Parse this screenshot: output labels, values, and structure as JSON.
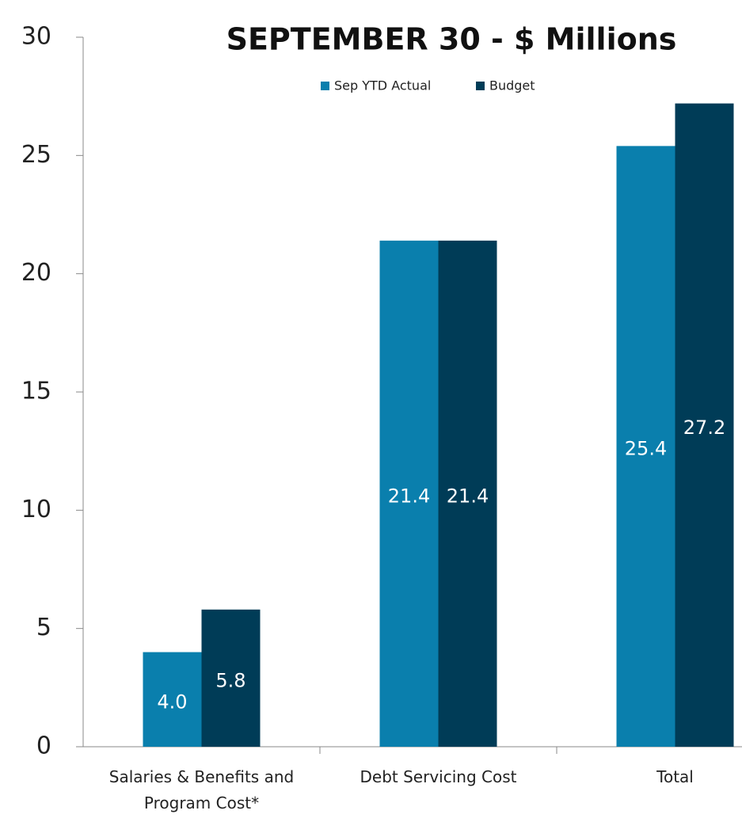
{
  "chart_data": {
    "type": "bar",
    "title": "SEPTEMBER 30 - $ Millions",
    "categories": [
      "Salaries & Benefits and Program Cost*",
      "Debt Servicing Cost",
      "Total"
    ],
    "series": [
      {
        "name": "Sep YTD Actual",
        "color": "#0a7fad",
        "values": [
          4.0,
          21.4,
          25.4
        ],
        "value_labels": [
          "4.0",
          "21.4",
          "25.4"
        ]
      },
      {
        "name": "Budget",
        "color": "#003c57",
        "values": [
          5.8,
          21.4,
          27.2
        ],
        "value_labels": [
          "5.8",
          "21.4",
          "27.2"
        ]
      }
    ],
    "ylim": [
      0,
      30
    ],
    "yticks": [
      0,
      5,
      10,
      15,
      20,
      25,
      30
    ],
    "grid": false,
    "legend": "top"
  }
}
